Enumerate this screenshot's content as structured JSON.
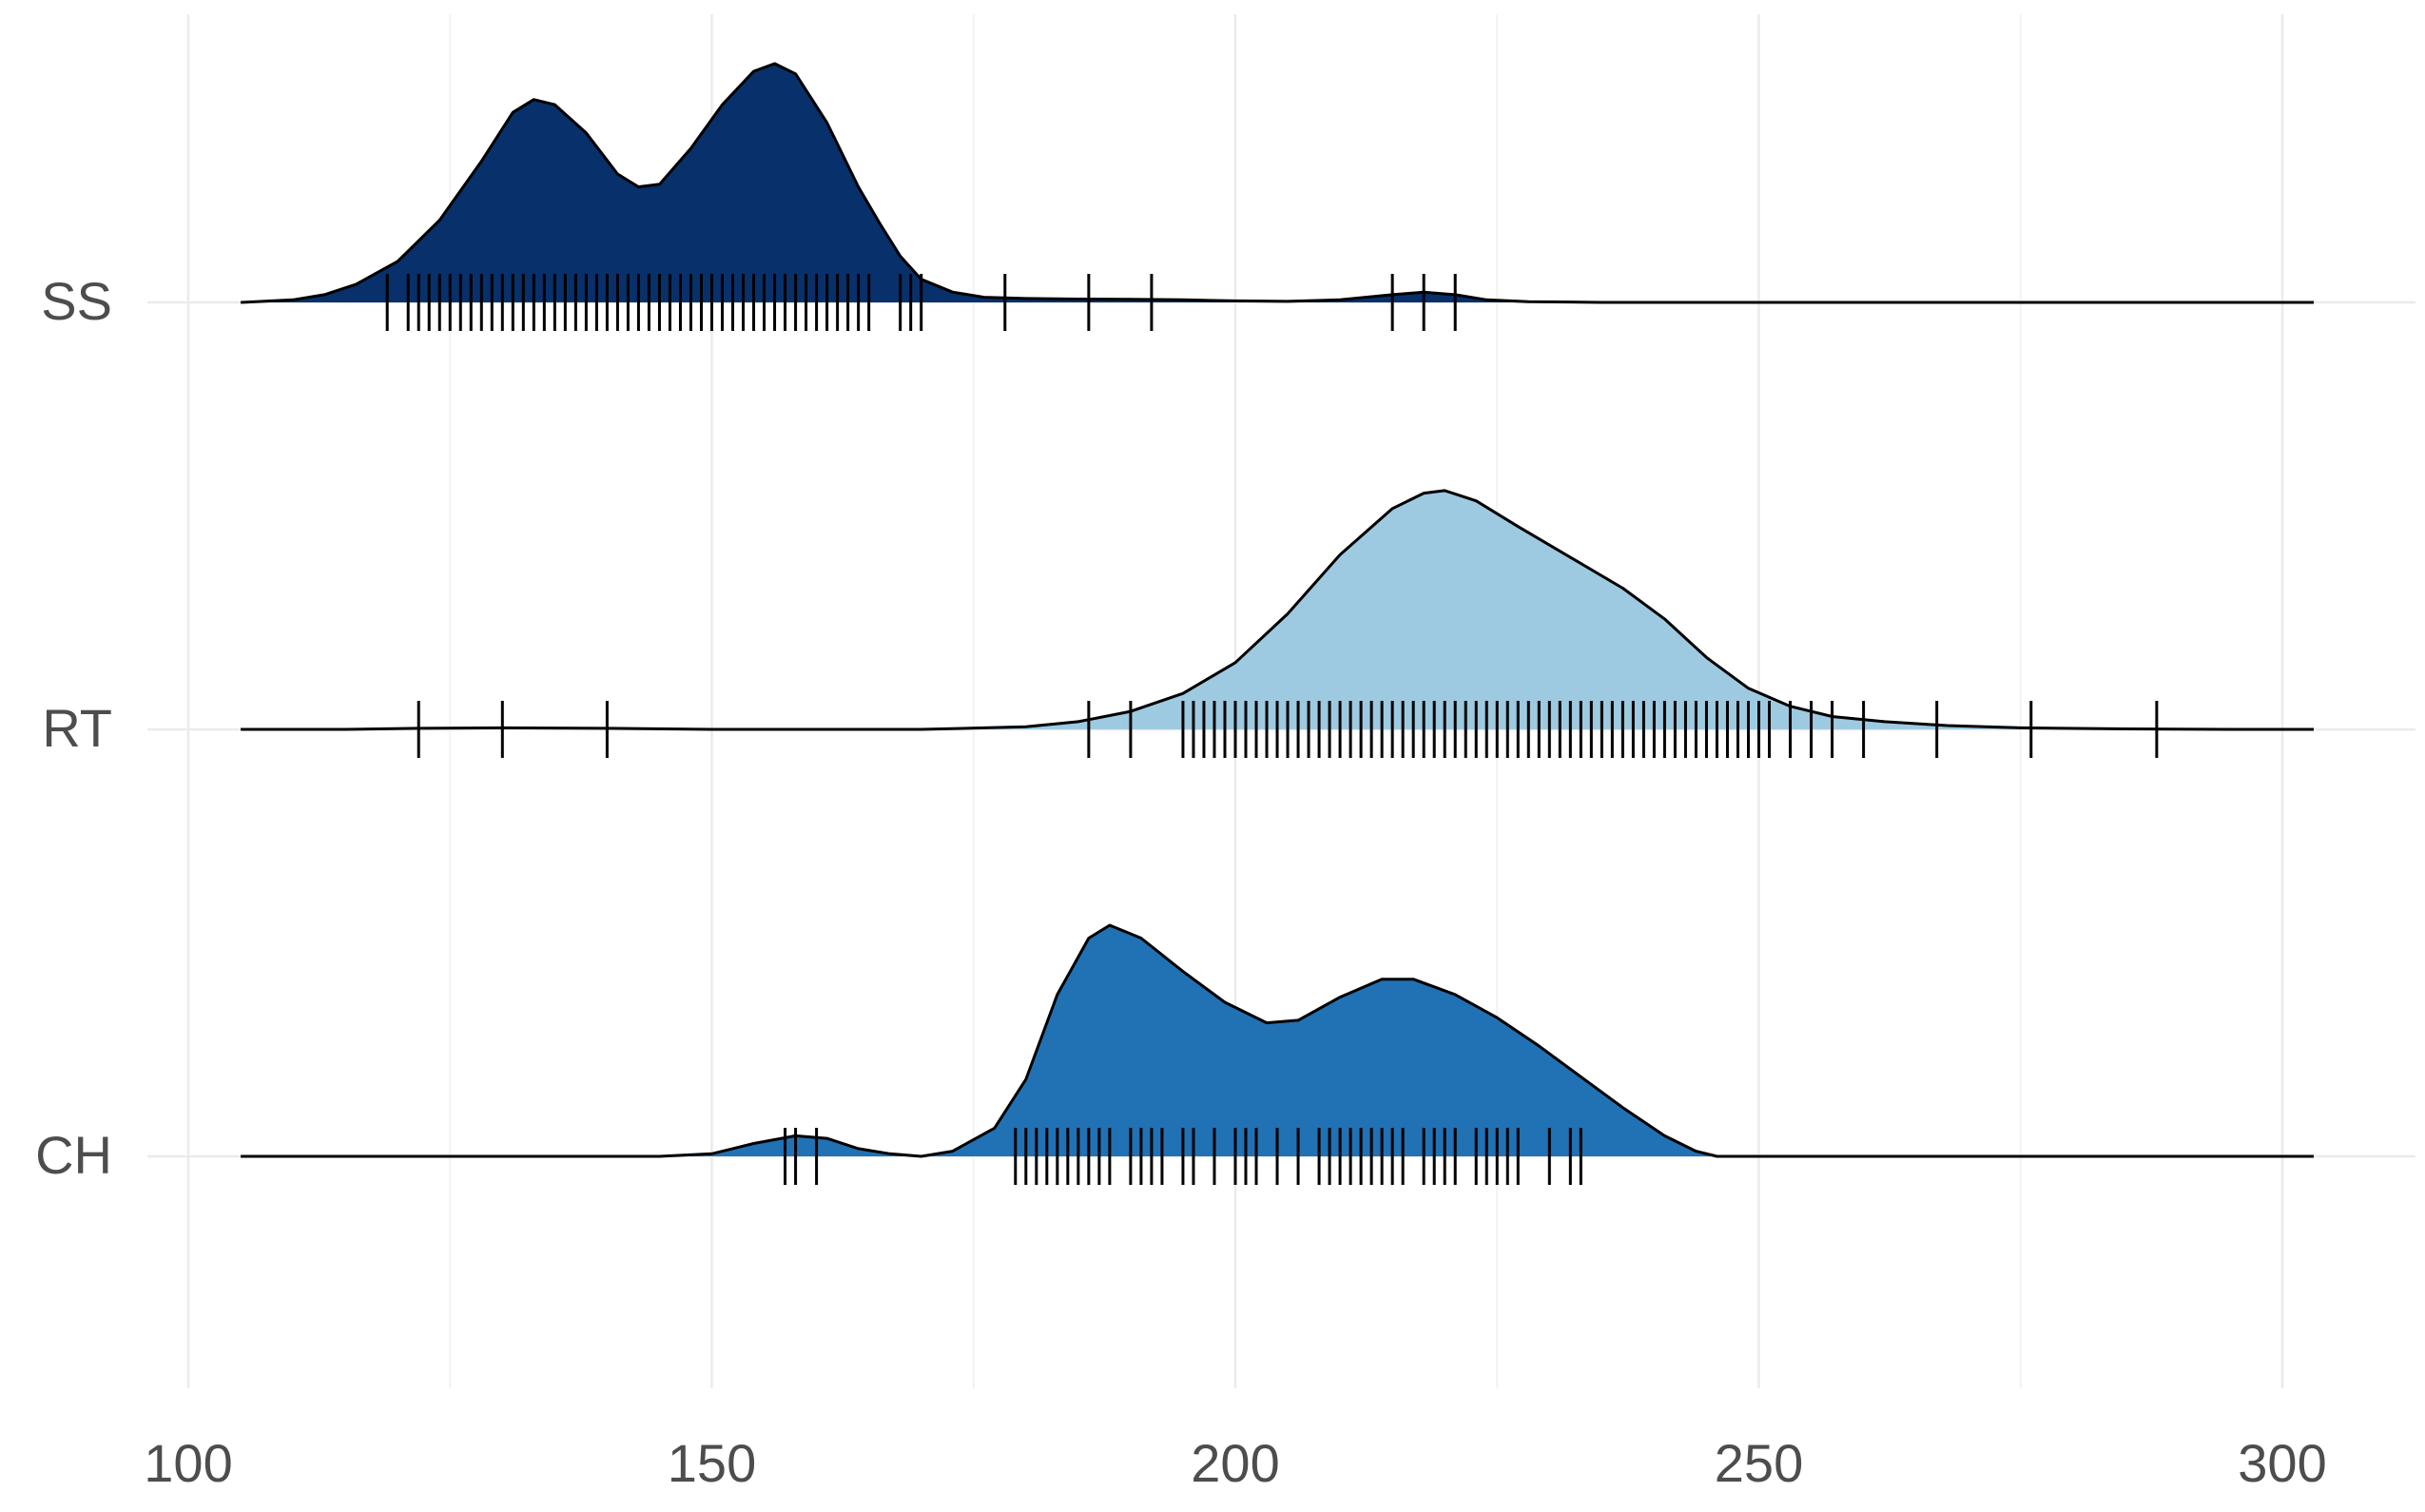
{
  "chart_data": {
    "type": "ridgeline",
    "title": "",
    "xlabel": "",
    "ylabel": "",
    "xlim": [
      95,
      313
    ],
    "x_ticks": [
      100,
      150,
      200,
      250,
      300
    ],
    "x_tick_labels": [
      "100",
      "150",
      "200",
      "250",
      "300"
    ],
    "grid": true,
    "legend": "none",
    "density_range": [
      105,
      303
    ],
    "series": [
      {
        "name": "SS",
        "color": "#08306b",
        "density": [
          [
            105,
            0
          ],
          [
            110,
            0.01
          ],
          [
            113,
            0.03
          ],
          [
            116,
            0.07
          ],
          [
            120,
            0.16
          ],
          [
            124,
            0.32
          ],
          [
            128,
            0.55
          ],
          [
            131,
            0.74
          ],
          [
            133,
            0.79
          ],
          [
            135,
            0.77
          ],
          [
            138,
            0.66
          ],
          [
            141,
            0.5
          ],
          [
            143,
            0.45
          ],
          [
            145,
            0.46
          ],
          [
            148,
            0.6
          ],
          [
            151,
            0.77
          ],
          [
            154,
            0.9
          ],
          [
            156,
            0.93
          ],
          [
            158,
            0.89
          ],
          [
            161,
            0.7
          ],
          [
            164,
            0.45
          ],
          [
            166,
            0.31
          ],
          [
            168,
            0.18
          ],
          [
            170,
            0.09
          ],
          [
            173,
            0.04
          ],
          [
            176,
            0.02
          ],
          [
            180,
            0.015
          ],
          [
            185,
            0.013
          ],
          [
            190,
            0.012
          ],
          [
            195,
            0.01
          ],
          [
            200,
            0.006
          ],
          [
            205,
            0.004
          ],
          [
            210,
            0.01
          ],
          [
            215,
            0.03
          ],
          [
            218,
            0.04
          ],
          [
            221,
            0.03
          ],
          [
            224,
            0.01
          ],
          [
            228,
            0.003
          ],
          [
            235,
            0
          ],
          [
            303,
            0
          ]
        ],
        "rug": [
          119,
          121,
          122,
          123,
          124,
          125,
          126,
          127,
          128,
          129,
          130,
          131,
          132,
          133,
          134,
          135,
          136,
          137,
          138,
          139,
          140,
          141,
          142,
          143,
          144,
          145,
          146,
          147,
          148,
          149,
          150,
          151,
          152,
          153,
          154,
          155,
          156,
          157,
          158,
          159,
          160,
          161,
          162,
          163,
          164,
          165,
          168,
          169,
          170,
          178,
          186,
          192,
          215,
          218,
          221
        ]
      },
      {
        "name": "RT",
        "color": "#9ecae1",
        "density": [
          [
            105,
            0
          ],
          [
            115,
            0
          ],
          [
            122,
            0.004
          ],
          [
            130,
            0.006
          ],
          [
            140,
            0.004
          ],
          [
            150,
            0
          ],
          [
            170,
            0
          ],
          [
            180,
            0.01
          ],
          [
            185,
            0.03
          ],
          [
            190,
            0.07
          ],
          [
            195,
            0.14
          ],
          [
            200,
            0.26
          ],
          [
            205,
            0.45
          ],
          [
            210,
            0.68
          ],
          [
            215,
            0.86
          ],
          [
            218,
            0.92
          ],
          [
            220,
            0.93
          ],
          [
            223,
            0.89
          ],
          [
            227,
            0.79
          ],
          [
            232,
            0.67
          ],
          [
            237,
            0.55
          ],
          [
            241,
            0.43
          ],
          [
            245,
            0.28
          ],
          [
            249,
            0.16
          ],
          [
            253,
            0.09
          ],
          [
            257,
            0.05
          ],
          [
            262,
            0.03
          ],
          [
            268,
            0.015
          ],
          [
            275,
            0.006
          ],
          [
            285,
            0.002
          ],
          [
            295,
            0
          ],
          [
            303,
            0
          ]
        ],
        "rug": [
          122,
          130,
          140,
          186,
          190,
          195,
          196,
          197,
          198,
          199,
          200,
          201,
          202,
          203,
          204,
          205,
          206,
          207,
          208,
          209,
          210,
          211,
          212,
          213,
          214,
          215,
          216,
          217,
          218,
          219,
          220,
          221,
          222,
          223,
          224,
          225,
          226,
          227,
          228,
          229,
          230,
          231,
          232,
          233,
          234,
          235,
          236,
          237,
          238,
          239,
          240,
          241,
          242,
          243,
          244,
          245,
          246,
          247,
          248,
          249,
          250,
          251,
          253,
          255,
          257,
          260,
          267,
          276,
          288
        ]
      },
      {
        "name": "CH",
        "color": "#2171b5",
        "density": [
          [
            105,
            0
          ],
          [
            145,
            0
          ],
          [
            150,
            0.01
          ],
          [
            154,
            0.05
          ],
          [
            158,
            0.08
          ],
          [
            161,
            0.07
          ],
          [
            164,
            0.03
          ],
          [
            167,
            0.01
          ],
          [
            170,
            0
          ],
          [
            173,
            0.02
          ],
          [
            177,
            0.11
          ],
          [
            180,
            0.3
          ],
          [
            183,
            0.63
          ],
          [
            186,
            0.85
          ],
          [
            188,
            0.9
          ],
          [
            191,
            0.85
          ],
          [
            195,
            0.72
          ],
          [
            199,
            0.6
          ],
          [
            203,
            0.52
          ],
          [
            206,
            0.53
          ],
          [
            210,
            0.62
          ],
          [
            214,
            0.69
          ],
          [
            217,
            0.69
          ],
          [
            221,
            0.63
          ],
          [
            225,
            0.54
          ],
          [
            229,
            0.43
          ],
          [
            233,
            0.31
          ],
          [
            237,
            0.19
          ],
          [
            241,
            0.08
          ],
          [
            244,
            0.02
          ],
          [
            246,
            0
          ],
          [
            303,
            0
          ]
        ],
        "rug": [
          157,
          158,
          160,
          179,
          180,
          181,
          182,
          183,
          184,
          185,
          186,
          187,
          188,
          190,
          191,
          192,
          193,
          195,
          196,
          198,
          200,
          201,
          202,
          204,
          206,
          208,
          209,
          210,
          211,
          212,
          213,
          214,
          215,
          216,
          218,
          219,
          220,
          221,
          223,
          224,
          225,
          226,
          227,
          230,
          232,
          233
        ]
      }
    ]
  }
}
